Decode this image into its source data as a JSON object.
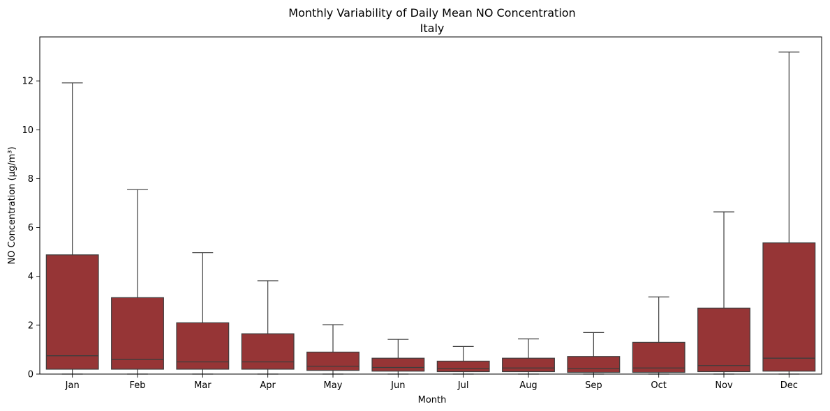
{
  "chart_data": {
    "type": "box",
    "title": "Monthly Variability of Daily Mean NO Concentration",
    "subtitle": "Italy",
    "xlabel": "Month",
    "ylabel": "NO Concentration (µg/m³)",
    "ylim": [
      0,
      13.8
    ],
    "yticks": [
      0,
      2,
      4,
      6,
      8,
      10,
      12
    ],
    "grid": false,
    "box_color": "#963536",
    "line_color": "#3d3d3d",
    "categories": [
      "Jan",
      "Feb",
      "Mar",
      "Apr",
      "May",
      "Jun",
      "Jul",
      "Aug",
      "Sep",
      "Oct",
      "Nov",
      "Dec"
    ],
    "boxes": [
      {
        "month": "Jan",
        "whisker_low": 0,
        "q1": 0.2,
        "median": 0.75,
        "q3": 4.88,
        "whisker_high": 11.92
      },
      {
        "month": "Feb",
        "whisker_low": 0,
        "q1": 0.2,
        "median": 0.6,
        "q3": 3.13,
        "whisker_high": 7.55
      },
      {
        "month": "Mar",
        "whisker_low": 0,
        "q1": 0.2,
        "median": 0.5,
        "q3": 2.1,
        "whisker_high": 4.97
      },
      {
        "month": "Apr",
        "whisker_low": 0,
        "q1": 0.2,
        "median": 0.5,
        "q3": 1.65,
        "whisker_high": 3.82
      },
      {
        "month": "May",
        "whisker_low": 0,
        "q1": 0.15,
        "median": 0.32,
        "q3": 0.9,
        "whisker_high": 2.02
      },
      {
        "month": "Jun",
        "whisker_low": 0,
        "q1": 0.12,
        "median": 0.27,
        "q3": 0.65,
        "whisker_high": 1.42
      },
      {
        "month": "Jul",
        "whisker_low": 0,
        "q1": 0.1,
        "median": 0.22,
        "q3": 0.53,
        "whisker_high": 1.13
      },
      {
        "month": "Aug",
        "whisker_low": 0,
        "q1": 0.1,
        "median": 0.25,
        "q3": 0.65,
        "whisker_high": 1.44
      },
      {
        "month": "Sep",
        "whisker_low": 0,
        "q1": 0.07,
        "median": 0.22,
        "q3": 0.72,
        "whisker_high": 1.7
      },
      {
        "month": "Oct",
        "whisker_low": 0,
        "q1": 0.07,
        "median": 0.25,
        "q3": 1.3,
        "whisker_high": 3.16
      },
      {
        "month": "Nov",
        "whisker_low": 0,
        "q1": 0.1,
        "median": 0.35,
        "q3": 2.7,
        "whisker_high": 6.64
      },
      {
        "month": "Dec",
        "whisker_low": 0,
        "q1": 0.12,
        "median": 0.65,
        "q3": 5.37,
        "whisker_high": 13.18
      }
    ]
  }
}
